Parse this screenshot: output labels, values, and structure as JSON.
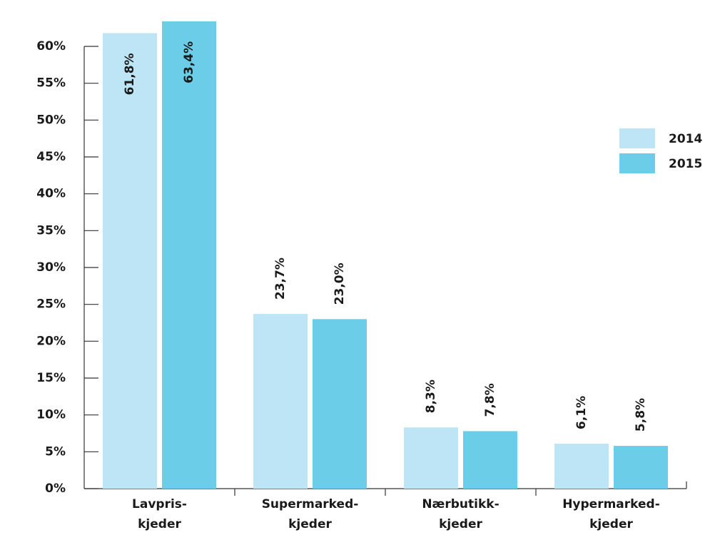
{
  "chart_data": {
    "type": "bar",
    "categories": [
      [
        "Lavpris-",
        "kjeder"
      ],
      [
        "Supermarked-",
        "kjeder"
      ],
      [
        "Nærbutikk-",
        "kjeder"
      ],
      [
        "Hypermarked-",
        "kjeder"
      ]
    ],
    "series": [
      {
        "name": "2014",
        "color": "#bde5f6",
        "values": [
          61.8,
          23.7,
          8.3,
          6.1
        ],
        "value_labels": [
          "61,8%",
          "23,7%",
          "8,3%",
          "6,1%"
        ]
      },
      {
        "name": "2015",
        "color": "#6ccde8",
        "values": [
          63.4,
          23.0,
          7.8,
          5.8
        ],
        "value_labels": [
          "63,4%",
          "23,0%",
          "7,8%",
          "5,8%"
        ]
      }
    ],
    "ylim": [
      0,
      60
    ],
    "yticks": [
      {
        "value": 0,
        "label": "0%"
      },
      {
        "value": 5,
        "label": "5%"
      },
      {
        "value": 10,
        "label": "10%"
      },
      {
        "value": 15,
        "label": "15%"
      },
      {
        "value": 20,
        "label": "20%"
      },
      {
        "value": 25,
        "label": "25%"
      },
      {
        "value": 30,
        "label": "30%"
      },
      {
        "value": 35,
        "label": "35%"
      },
      {
        "value": 40,
        "label": "40%"
      },
      {
        "value": 45,
        "label": "45%"
      },
      {
        "value": 50,
        "label": "50%"
      },
      {
        "value": 55,
        "label": "55%"
      },
      {
        "value": 60,
        "label": "60%"
      }
    ],
    "legend": "right"
  }
}
